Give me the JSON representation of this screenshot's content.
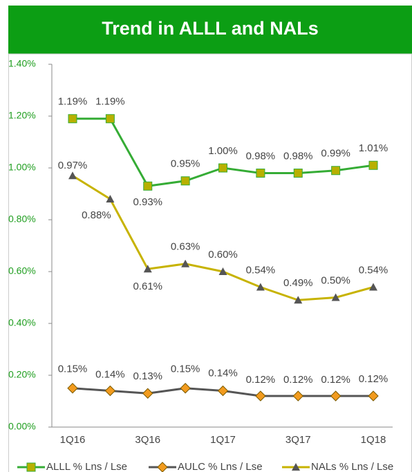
{
  "chart_data": {
    "type": "line",
    "title": "Trend in ALLL and NALs",
    "categories": [
      "1Q16",
      null,
      "3Q16",
      null,
      "1Q17",
      null,
      "3Q17",
      null,
      "1Q18"
    ],
    "ylim": [
      0,
      1.4
    ],
    "yticks": [
      {
        "value": 0,
        "label": "0.00%"
      },
      {
        "value": 0.2,
        "label": "0.20%"
      },
      {
        "value": 0.4,
        "label": "0.40%"
      },
      {
        "value": 0.6,
        "label": "0.60%"
      },
      {
        "value": 0.8,
        "label": "0.80%"
      },
      {
        "value": 1.0,
        "label": "1.00%"
      },
      {
        "value": 1.2,
        "label": "1.20%"
      },
      {
        "value": 1.4,
        "label": "1.40%"
      }
    ],
    "series": [
      {
        "name": "ALLL % Lns / Lse",
        "color": "#35ac35",
        "marker_color": "#b8b000",
        "marker": "square",
        "values": [
          1.19,
          1.19,
          0.93,
          0.95,
          1.0,
          0.98,
          0.98,
          0.99,
          1.01
        ],
        "value_labels": [
          "1.19%",
          "1.19%",
          "0.93%",
          "0.95%",
          "1.00%",
          "0.98%",
          "0.98%",
          "0.99%",
          "1.01%"
        ]
      },
      {
        "name": "AULC % Lns / Lse",
        "color": "#555555",
        "marker_color": "#f29b1e",
        "marker": "diamond",
        "values": [
          0.15,
          0.14,
          0.13,
          0.15,
          0.14,
          0.12,
          0.12,
          0.12,
          0.12
        ],
        "value_labels": [
          "0.15%",
          "0.14%",
          "0.13%",
          "0.15%",
          "0.14%",
          "0.12%",
          "0.12%",
          "0.12%",
          "0.12%"
        ]
      },
      {
        "name": "NALs % Lns / Lse",
        "color": "#c7b300",
        "marker_color": "#555555",
        "marker": "triangle",
        "values": [
          0.97,
          0.88,
          0.61,
          0.63,
          0.6,
          0.54,
          0.49,
          0.5,
          0.54
        ],
        "value_labels": [
          "0.97%",
          "0.88%",
          "0.61%",
          "0.63%",
          "0.60%",
          "0.54%",
          "0.49%",
          "0.50%",
          "0.54%"
        ]
      }
    ]
  }
}
